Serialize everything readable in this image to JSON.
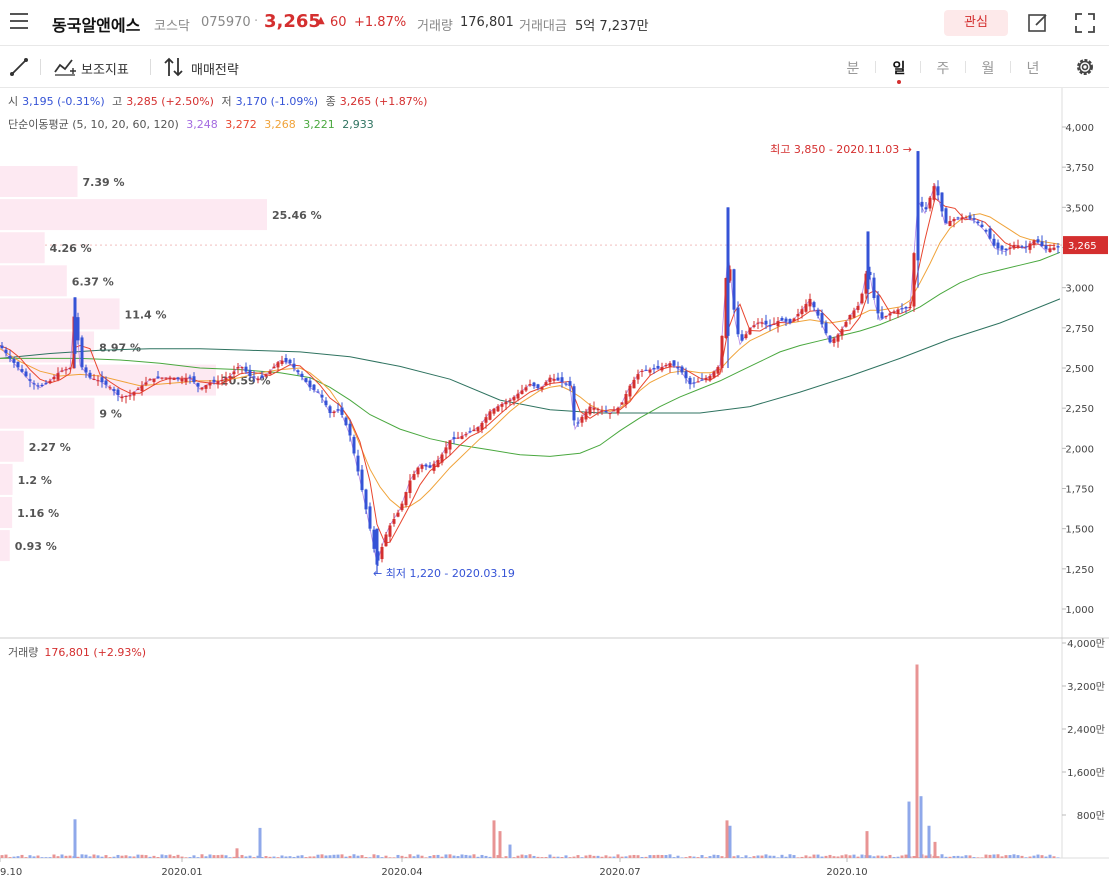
{
  "header": {
    "stock_name": "동국알앤에스",
    "market": "코스닥",
    "code": "075970",
    "separator": "·",
    "price": "3,265",
    "change_arrow": "▲",
    "change": "60",
    "change_rate": "+1.87%",
    "volume_label": "거래량",
    "volume_value": "176,801",
    "amount_label": "거래대금",
    "amount_value": "5억 7,237만",
    "fav_label": "관심"
  },
  "toolbar": {
    "indicator_label": "보조지표",
    "strategy_label": "매매전략",
    "periods": [
      "분",
      "일",
      "주",
      "월",
      "년"
    ],
    "active_period": "일"
  },
  "info": {
    "open_label": "시",
    "open_value": "3,195 (-0.31%)",
    "high_label": "고",
    "high_value": "3,285 (+2.50%)",
    "low_label": "저",
    "low_value": "3,170 (-1.09%)",
    "close_label": "종",
    "close_value": "3,265 (+1.87%)",
    "ma_label": "단순이동평균 (5, 10, 20, 60, 120)",
    "ma_values": [
      "3,248",
      "3,272",
      "3,268",
      "3,221",
      "2,933"
    ]
  },
  "volume_panel": {
    "label": "거래량",
    "value": "176,801 (+2.93%)"
  },
  "colors": {
    "up": "#d42f2f",
    "down": "#3553d6",
    "ma5": "#a46be0",
    "ma10": "#e8462f",
    "ma20": "#f0a33a",
    "ma60": "#4aa83f",
    "ma120": "#2f7360",
    "profile_bar": "#fde9f2"
  },
  "chart_data": {
    "type": "candlestick",
    "y_ticks": [
      "4,000",
      "3,750",
      "3,500",
      "3,250",
      "3,000",
      "2,750",
      "2,500",
      "2,250",
      "2,000",
      "1,750",
      "1,500",
      "1,250",
      "1,000"
    ],
    "y_tick_values": [
      4000,
      3750,
      3500,
      3250,
      3000,
      2750,
      2500,
      2250,
      2000,
      1750,
      1500,
      1250,
      1000
    ],
    "x_ticks": [
      "9.10",
      "2020.01",
      "2020.04",
      "2020.07",
      "2020.10"
    ],
    "current_price_tag": "3,265",
    "high_annotation": "최고 3,850 - 2020.11.03 →",
    "low_annotation": "← 최저 1,220 - 2020.03.19",
    "volume_profile": [
      {
        "label": "7.39 %",
        "value": 7.39
      },
      {
        "label": "25.46 %",
        "value": 25.46
      },
      {
        "label": "4.26 %",
        "value": 4.26
      },
      {
        "label": "6.37 %",
        "value": 6.37
      },
      {
        "label": "11.4 %",
        "value": 11.4
      },
      {
        "label": "8.97 %",
        "value": 8.97
      },
      {
        "label": "20.59 %",
        "value": 20.59
      },
      {
        "label": "9 %",
        "value": 9
      },
      {
        "label": "2.27 %",
        "value": 2.27
      },
      {
        "label": "1.2 %",
        "value": 1.2
      },
      {
        "label": "1.16 %",
        "value": 1.16
      },
      {
        "label": "0.93 %",
        "value": 0.93
      }
    ],
    "price_path": [
      [
        0,
        2640
      ],
      [
        10,
        2560
      ],
      [
        20,
        2490
      ],
      [
        30,
        2420
      ],
      [
        40,
        2380
      ],
      [
        50,
        2420
      ],
      [
        60,
        2480
      ],
      [
        70,
        2500
      ],
      [
        75,
        2900
      ],
      [
        80,
        2520
      ],
      [
        90,
        2440
      ],
      [
        100,
        2420
      ],
      [
        110,
        2380
      ],
      [
        120,
        2320
      ],
      [
        130,
        2330
      ],
      [
        140,
        2380
      ],
      [
        150,
        2430
      ],
      [
        160,
        2440
      ],
      [
        170,
        2440
      ],
      [
        180,
        2430
      ],
      [
        190,
        2440
      ],
      [
        200,
        2370
      ],
      [
        210,
        2410
      ],
      [
        220,
        2420
      ],
      [
        230,
        2450
      ],
      [
        240,
        2520
      ],
      [
        250,
        2450
      ],
      [
        260,
        2430
      ],
      [
        270,
        2480
      ],
      [
        280,
        2550
      ],
      [
        290,
        2530
      ],
      [
        300,
        2460
      ],
      [
        310,
        2380
      ],
      [
        320,
        2340
      ],
      [
        330,
        2220
      ],
      [
        340,
        2240
      ],
      [
        350,
        2080
      ],
      [
        360,
        1800
      ],
      [
        370,
        1500
      ],
      [
        377,
        1280
      ],
      [
        385,
        1450
      ],
      [
        390,
        1520
      ],
      [
        400,
        1620
      ],
      [
        410,
        1800
      ],
      [
        420,
        1900
      ],
      [
        430,
        1880
      ],
      [
        440,
        1940
      ],
      [
        450,
        2050
      ],
      [
        460,
        2070
      ],
      [
        470,
        2100
      ],
      [
        480,
        2140
      ],
      [
        490,
        2230
      ],
      [
        500,
        2270
      ],
      [
        510,
        2300
      ],
      [
        520,
        2350
      ],
      [
        530,
        2400
      ],
      [
        540,
        2370
      ],
      [
        550,
        2440
      ],
      [
        560,
        2420
      ],
      [
        570,
        2390
      ],
      [
        575,
        2120
      ],
      [
        580,
        2180
      ],
      [
        590,
        2260
      ],
      [
        600,
        2240
      ],
      [
        610,
        2220
      ],
      [
        620,
        2260
      ],
      [
        630,
        2390
      ],
      [
        640,
        2480
      ],
      [
        650,
        2490
      ],
      [
        660,
        2500
      ],
      [
        670,
        2530
      ],
      [
        680,
        2490
      ],
      [
        690,
        2400
      ],
      [
        700,
        2420
      ],
      [
        710,
        2450
      ],
      [
        720,
        2520
      ],
      [
        728,
        3240
      ],
      [
        735,
        2800
      ],
      [
        740,
        2650
      ],
      [
        750,
        2750
      ],
      [
        760,
        2790
      ],
      [
        770,
        2760
      ],
      [
        780,
        2800
      ],
      [
        790,
        2780
      ],
      [
        800,
        2850
      ],
      [
        810,
        2930
      ],
      [
        820,
        2800
      ],
      [
        830,
        2660
      ],
      [
        840,
        2720
      ],
      [
        850,
        2830
      ],
      [
        860,
        2900
      ],
      [
        868,
        3150
      ],
      [
        875,
        2900
      ],
      [
        880,
        2800
      ],
      [
        890,
        2840
      ],
      [
        900,
        2870
      ],
      [
        910,
        2880
      ],
      [
        918,
        3550
      ],
      [
        925,
        3470
      ],
      [
        935,
        3650
      ],
      [
        945,
        3400
      ],
      [
        955,
        3430
      ],
      [
        965,
        3440
      ],
      [
        975,
        3420
      ],
      [
        985,
        3360
      ],
      [
        995,
        3250
      ],
      [
        1005,
        3230
      ],
      [
        1015,
        3270
      ],
      [
        1025,
        3250
      ],
      [
        1035,
        3300
      ],
      [
        1045,
        3240
      ],
      [
        1055,
        3250
      ]
    ],
    "ma20_path": [
      [
        0,
        2620
      ],
      [
        20,
        2540
      ],
      [
        40,
        2480
      ],
      [
        60,
        2450
      ],
      [
        80,
        2460
      ],
      [
        100,
        2450
      ],
      [
        120,
        2420
      ],
      [
        140,
        2390
      ],
      [
        160,
        2400
      ],
      [
        180,
        2410
      ],
      [
        200,
        2420
      ],
      [
        220,
        2420
      ],
      [
        240,
        2440
      ],
      [
        260,
        2470
      ],
      [
        280,
        2490
      ],
      [
        300,
        2500
      ],
      [
        310,
        2470
      ],
      [
        320,
        2420
      ],
      [
        330,
        2360
      ],
      [
        340,
        2270
      ],
      [
        350,
        2170
      ],
      [
        360,
        2020
      ],
      [
        370,
        1870
      ],
      [
        380,
        1760
      ],
      [
        390,
        1680
      ],
      [
        400,
        1630
      ],
      [
        410,
        1640
      ],
      [
        420,
        1680
      ],
      [
        430,
        1740
      ],
      [
        440,
        1810
      ],
      [
        450,
        1880
      ],
      [
        460,
        1940
      ],
      [
        470,
        2000
      ],
      [
        480,
        2060
      ],
      [
        490,
        2110
      ],
      [
        500,
        2170
      ],
      [
        510,
        2230
      ],
      [
        520,
        2280
      ],
      [
        530,
        2320
      ],
      [
        540,
        2360
      ],
      [
        550,
        2380
      ],
      [
        560,
        2390
      ],
      [
        570,
        2360
      ],
      [
        580,
        2320
      ],
      [
        590,
        2270
      ],
      [
        600,
        2240
      ],
      [
        610,
        2230
      ],
      [
        620,
        2250
      ],
      [
        630,
        2300
      ],
      [
        640,
        2360
      ],
      [
        650,
        2410
      ],
      [
        660,
        2440
      ],
      [
        670,
        2470
      ],
      [
        680,
        2480
      ],
      [
        690,
        2480
      ],
      [
        700,
        2470
      ],
      [
        710,
        2470
      ],
      [
        720,
        2490
      ],
      [
        730,
        2560
      ],
      [
        740,
        2620
      ],
      [
        750,
        2670
      ],
      [
        760,
        2700
      ],
      [
        770,
        2730
      ],
      [
        780,
        2760
      ],
      [
        790,
        2780
      ],
      [
        800,
        2790
      ],
      [
        810,
        2800
      ],
      [
        820,
        2790
      ],
      [
        830,
        2780
      ],
      [
        840,
        2790
      ],
      [
        850,
        2800
      ],
      [
        860,
        2830
      ],
      [
        870,
        2860
      ],
      [
        880,
        2860
      ],
      [
        890,
        2870
      ],
      [
        900,
        2880
      ],
      [
        910,
        2920
      ],
      [
        920,
        3030
      ],
      [
        930,
        3150
      ],
      [
        940,
        3280
      ],
      [
        950,
        3370
      ],
      [
        960,
        3420
      ],
      [
        970,
        3450
      ],
      [
        980,
        3460
      ],
      [
        990,
        3440
      ],
      [
        1000,
        3400
      ],
      [
        1010,
        3360
      ],
      [
        1020,
        3320
      ],
      [
        1030,
        3300
      ],
      [
        1040,
        3290
      ],
      [
        1050,
        3280
      ],
      [
        1060,
        3270
      ]
    ],
    "ma60_path": [
      [
        0,
        2560
      ],
      [
        40,
        2560
      ],
      [
        80,
        2560
      ],
      [
        120,
        2550
      ],
      [
        160,
        2530
      ],
      [
        200,
        2500
      ],
      [
        240,
        2490
      ],
      [
        280,
        2470
      ],
      [
        310,
        2440
      ],
      [
        330,
        2380
      ],
      [
        350,
        2300
      ],
      [
        370,
        2210
      ],
      [
        400,
        2120
      ],
      [
        430,
        2060
      ],
      [
        460,
        2020
      ],
      [
        490,
        1990
      ],
      [
        520,
        1960
      ],
      [
        550,
        1950
      ],
      [
        580,
        1970
      ],
      [
        600,
        2020
      ],
      [
        620,
        2110
      ],
      [
        640,
        2190
      ],
      [
        660,
        2260
      ],
      [
        680,
        2320
      ],
      [
        700,
        2370
      ],
      [
        720,
        2420
      ],
      [
        740,
        2480
      ],
      [
        760,
        2540
      ],
      [
        780,
        2600
      ],
      [
        800,
        2640
      ],
      [
        820,
        2670
      ],
      [
        840,
        2700
      ],
      [
        860,
        2730
      ],
      [
        880,
        2770
      ],
      [
        900,
        2820
      ],
      [
        920,
        2880
      ],
      [
        940,
        2960
      ],
      [
        960,
        3030
      ],
      [
        980,
        3080
      ],
      [
        1000,
        3110
      ],
      [
        1020,
        3140
      ],
      [
        1040,
        3170
      ],
      [
        1060,
        3220
      ]
    ],
    "ma120_path": [
      [
        0,
        2560
      ],
      [
        50,
        2590
      ],
      [
        100,
        2610
      ],
      [
        150,
        2620
      ],
      [
        200,
        2620
      ],
      [
        250,
        2610
      ],
      [
        300,
        2600
      ],
      [
        350,
        2570
      ],
      [
        400,
        2510
      ],
      [
        450,
        2430
      ],
      [
        500,
        2300
      ],
      [
        550,
        2240
      ],
      [
        600,
        2220
      ],
      [
        650,
        2220
      ],
      [
        700,
        2220
      ],
      [
        750,
        2260
      ],
      [
        800,
        2350
      ],
      [
        850,
        2450
      ],
      [
        900,
        2560
      ],
      [
        950,
        2680
      ],
      [
        1000,
        2780
      ],
      [
        1060,
        2930
      ]
    ],
    "volume_ticks": [
      "4,000만",
      "3,200만",
      "2,400만",
      "1,600만",
      "800만"
    ],
    "volume_tick_values": [
      4000,
      3200,
      2400,
      1600,
      800
    ],
    "volume_spikes": [
      [
        75,
        720,
        "down"
      ],
      [
        237,
        180,
        "up"
      ],
      [
        260,
        560,
        "down"
      ],
      [
        494,
        700,
        "up"
      ],
      [
        500,
        500,
        "up"
      ],
      [
        510,
        250,
        "down"
      ],
      [
        727,
        700,
        "up"
      ],
      [
        730,
        600,
        "down"
      ],
      [
        867,
        500,
        "up"
      ],
      [
        909,
        1050,
        "down"
      ],
      [
        917,
        3600,
        "up"
      ],
      [
        921,
        1150,
        "down"
      ],
      [
        929,
        600,
        "down"
      ],
      [
        935,
        300,
        "up"
      ]
    ]
  }
}
